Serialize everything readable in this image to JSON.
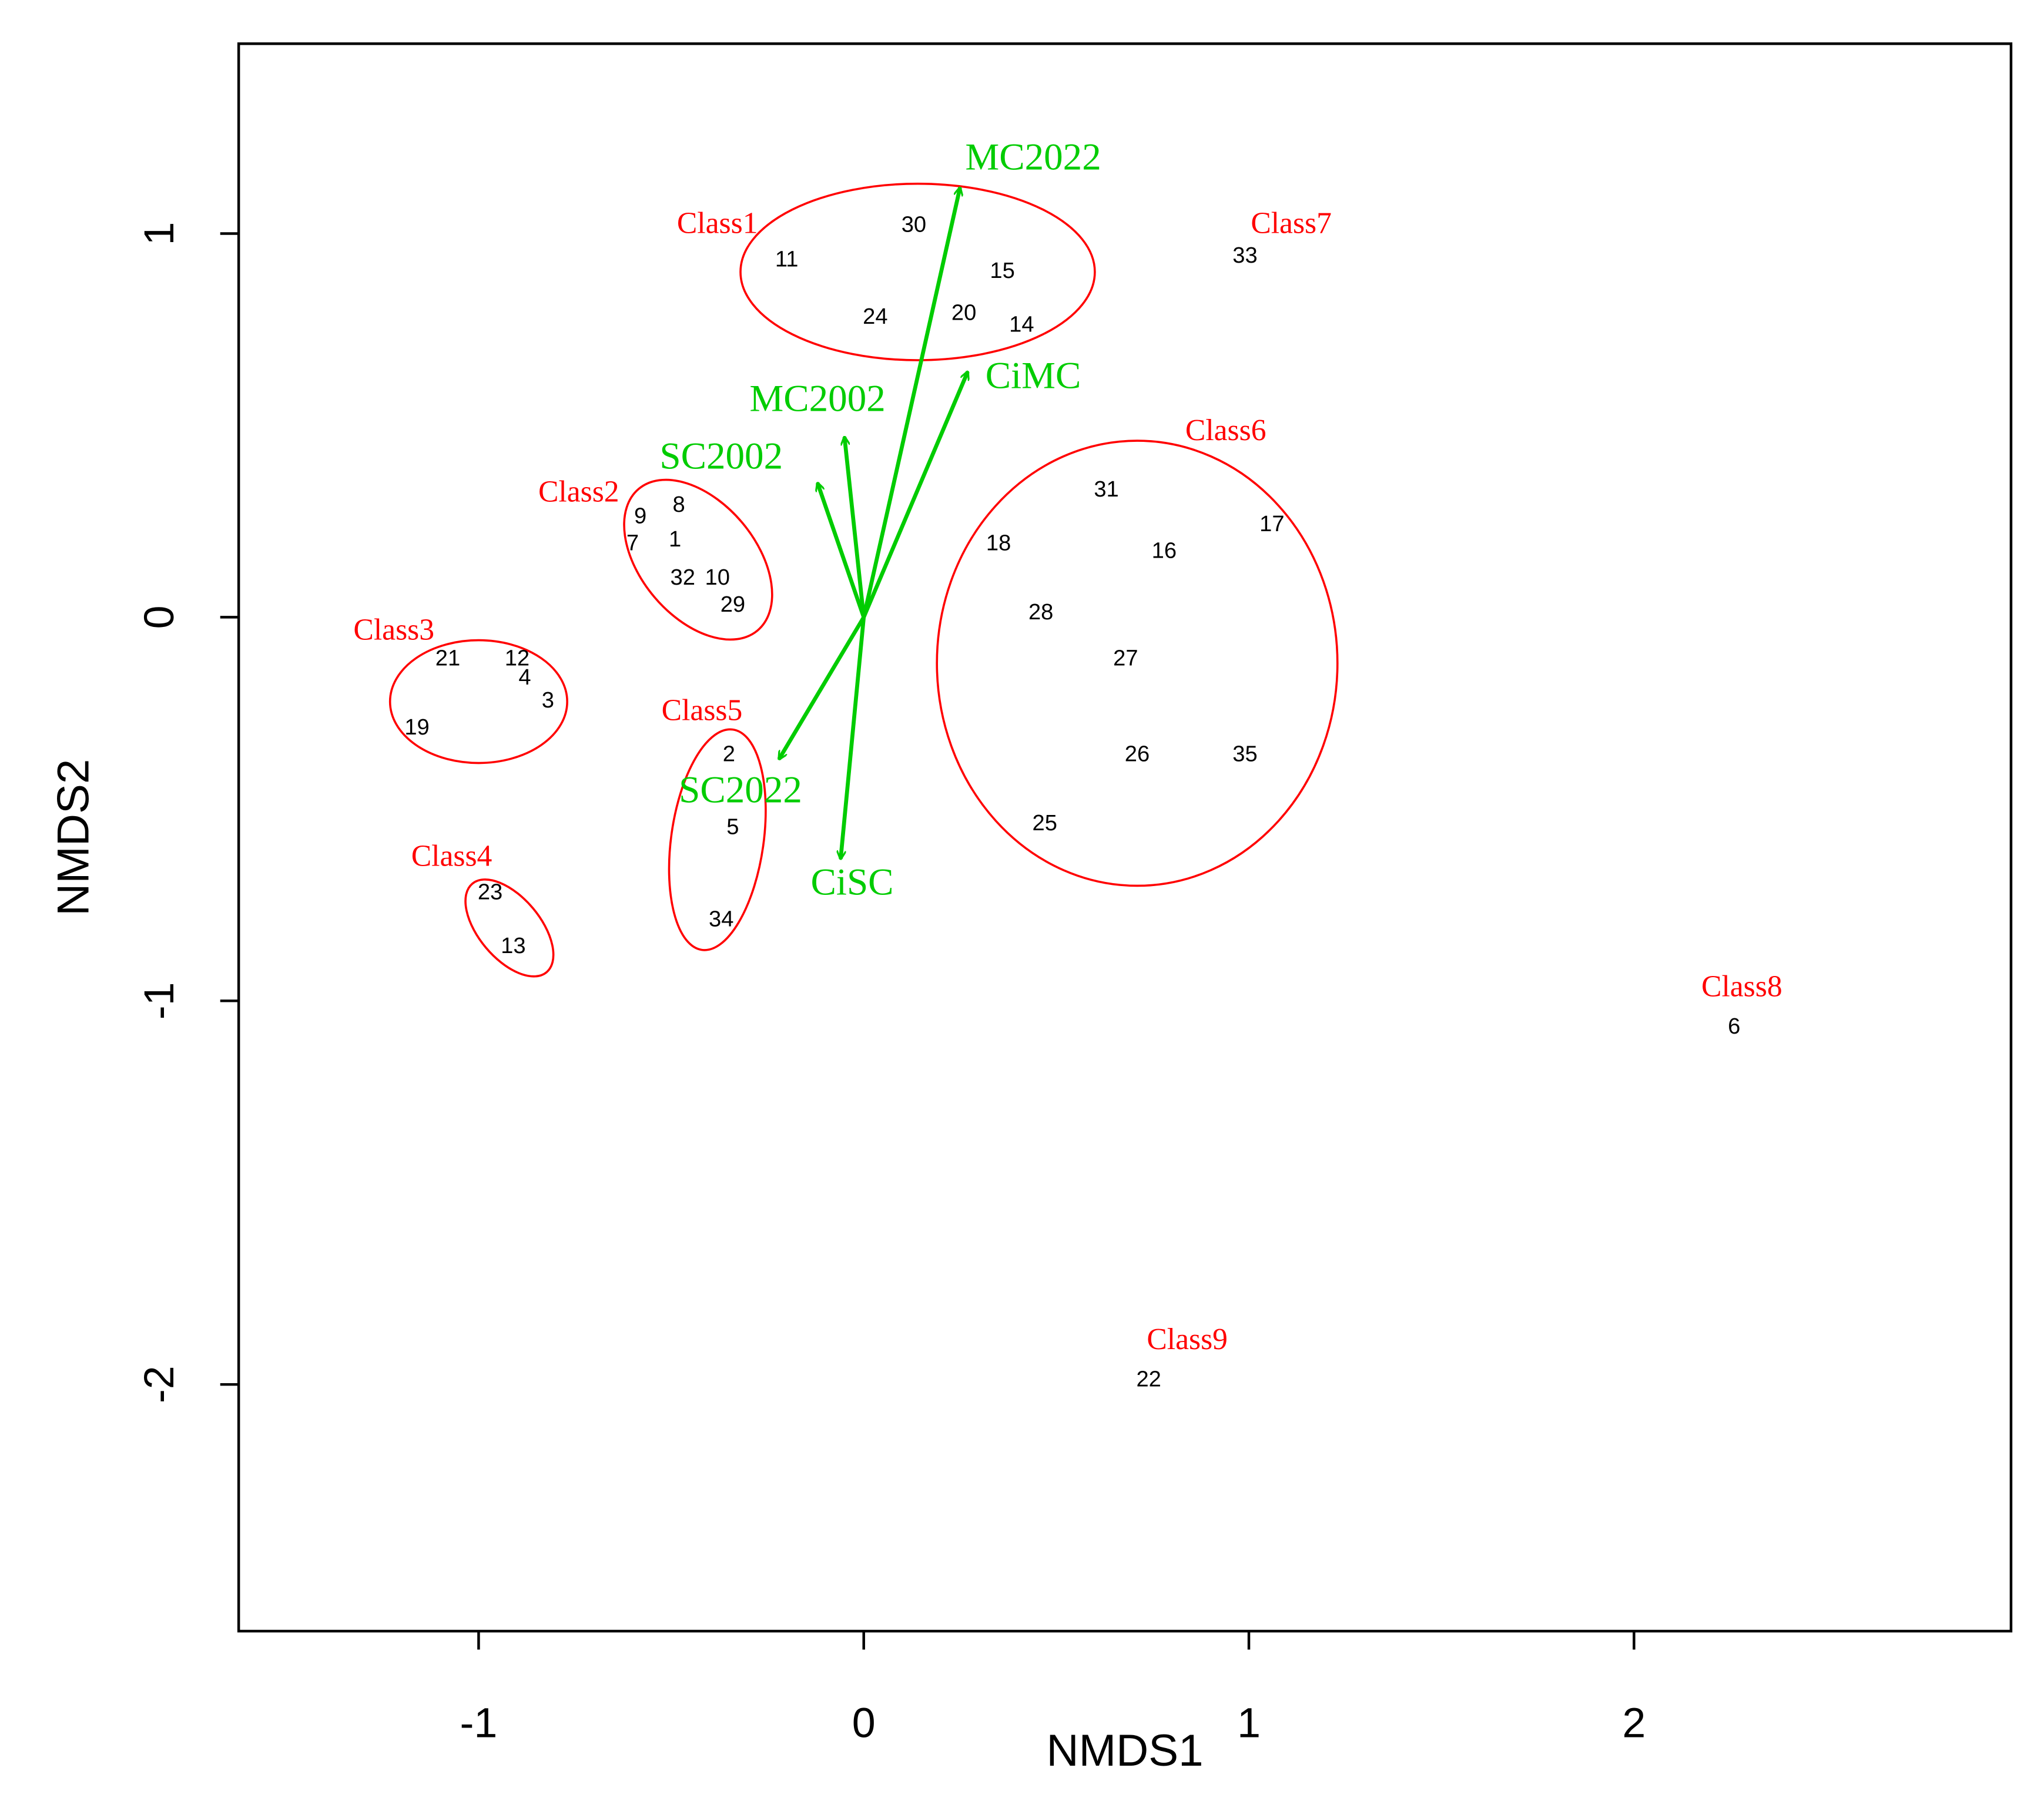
{
  "chart_data": {
    "type": "scatter",
    "xlabel": "NMDS1",
    "ylabel": "NMDS2",
    "xlim": [
      -1.623,
      2.979
    ],
    "ylim": [
      -2.643,
      1.495
    ],
    "xticks": [
      -1,
      0,
      1,
      2
    ],
    "yticks": [
      -2,
      -1,
      0,
      1
    ],
    "point_color": "#000000",
    "point_labels": [
      "11",
      "30",
      "15",
      "24",
      "20",
      "14",
      "33",
      "9",
      "8",
      "7",
      "1",
      "32",
      "10",
      "29",
      "21",
      "12",
      "4",
      "3",
      "19",
      "2",
      "5",
      "34",
      "23",
      "13",
      "31",
      "17",
      "18",
      "16",
      "28",
      "27",
      "26",
      "35",
      "25",
      "6",
      "22"
    ],
    "x": [
      -0.2,
      0.13,
      0.36,
      0.03,
      0.26,
      0.41,
      0.99,
      -0.58,
      -0.48,
      -0.6,
      -0.49,
      -0.47,
      -0.38,
      -0.34,
      -1.08,
      -0.9,
      -0.88,
      -0.82,
      -1.16,
      -0.35,
      -0.34,
      -0.37,
      -0.97,
      -0.91,
      0.63,
      1.06,
      0.35,
      0.78,
      0.46,
      0.68,
      0.71,
      0.99,
      0.47,
      2.26,
      0.74
    ],
    "y": [
      0.93,
      1.02,
      0.9,
      0.78,
      0.79,
      0.76,
      0.94,
      0.26,
      0.29,
      0.19,
      0.2,
      0.1,
      0.1,
      0.03,
      -0.11,
      -0.11,
      -0.16,
      -0.22,
      -0.29,
      -0.36,
      -0.55,
      -0.79,
      -0.72,
      -0.86,
      0.33,
      0.24,
      0.19,
      0.17,
      0.01,
      -0.11,
      -0.36,
      -0.36,
      -0.54,
      -1.07,
      -1.99
    ],
    "class_color": "#ff0000",
    "classes": [
      {
        "name": "Class1",
        "x": -0.38,
        "y": 1.02,
        "ellipse": {
          "cx": 0.14,
          "cy": 0.9,
          "rx": 0.46,
          "ry": 0.23,
          "angle": 0
        }
      },
      {
        "name": "Class2",
        "x": -0.74,
        "y": 0.32,
        "ellipse": {
          "cx": -0.43,
          "cy": 0.15,
          "rx": 0.24,
          "ry": 0.15,
          "angle": 50
        }
      },
      {
        "name": "Class3",
        "x": -1.22,
        "y": -0.04,
        "ellipse": {
          "cx": -1.0,
          "cy": -0.22,
          "rx": 0.23,
          "ry": 0.16,
          "angle": 0
        }
      },
      {
        "name": "Class4",
        "x": -1.07,
        "y": -0.63,
        "ellipse": {
          "cx": -0.92,
          "cy": -0.81,
          "rx": 0.15,
          "ry": 0.08,
          "angle": 50
        }
      },
      {
        "name": "Class5",
        "x": -0.42,
        "y": -0.25,
        "ellipse": {
          "cx": -0.38,
          "cy": -0.58,
          "rx": 0.12,
          "ry": 0.29,
          "angle": 8
        }
      },
      {
        "name": "Class6",
        "x": 0.94,
        "y": 0.48,
        "ellipse": {
          "cx": 0.71,
          "cy": -0.12,
          "rx": 0.52,
          "ry": 0.58,
          "angle": 0
        }
      },
      {
        "name": "Class7",
        "x": 1.11,
        "y": 1.02
      },
      {
        "name": "Class8",
        "x": 2.28,
        "y": -0.97
      },
      {
        "name": "Class9",
        "x": 0.84,
        "y": -1.89
      }
    ],
    "vector_color": "#00cc00",
    "vectors": [
      {
        "name": "MC2022",
        "x": 0.25,
        "y": 1.12,
        "label_x": 0.44,
        "label_y": 1.19
      },
      {
        "name": "CiMC",
        "x": 0.27,
        "y": 0.64,
        "label_x": 0.44,
        "label_y": 0.62
      },
      {
        "name": "MC2002",
        "x": -0.05,
        "y": 0.47,
        "label_x": -0.12,
        "label_y": 0.56
      },
      {
        "name": "SC2002",
        "x": -0.12,
        "y": 0.35,
        "label_x": -0.37,
        "label_y": 0.41
      },
      {
        "name": "SC2022",
        "x": -0.22,
        "y": -0.37,
        "label_x": -0.32,
        "label_y": -0.46
      },
      {
        "name": "CiSC",
        "x": -0.06,
        "y": -0.63,
        "label_x": -0.03,
        "label_y": -0.7
      }
    ]
  }
}
